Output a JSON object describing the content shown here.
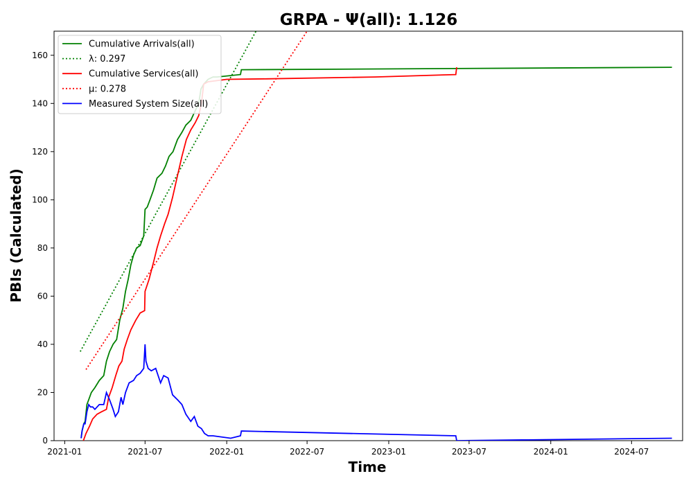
{
  "chart_data": {
    "type": "line",
    "title": "GRPA -  Ψ(all): 1.126",
    "xlabel": "Time",
    "ylabel": "PBIs (Calculated)",
    "xlim": [
      "2021-01-01",
      "2024-10-31"
    ],
    "ylim": [
      0,
      170
    ],
    "x_ticks": [
      "2021-01",
      "2021-07",
      "2022-01",
      "2022-07",
      "2023-01",
      "2023-07",
      "2024-01",
      "2024-07"
    ],
    "y_ticks": [
      0,
      20,
      40,
      60,
      80,
      100,
      120,
      140,
      160
    ],
    "grid": false,
    "legend_position": "top-left",
    "series": [
      {
        "name": "Cumulative Arrivals(all)",
        "color": "#008000",
        "style": "solid",
        "points": [
          [
            "2021-02-07",
            1
          ],
          [
            "2021-02-09",
            4
          ],
          [
            "2021-02-13",
            7
          ],
          [
            "2021-02-16",
            8
          ],
          [
            "2021-02-20",
            15
          ],
          [
            "2021-02-24",
            17
          ],
          [
            "2021-03-02",
            20
          ],
          [
            "2021-03-10",
            22
          ],
          [
            "2021-03-20",
            25
          ],
          [
            "2021-03-30",
            27
          ],
          [
            "2021-04-05",
            33
          ],
          [
            "2021-04-12",
            37
          ],
          [
            "2021-04-20",
            40
          ],
          [
            "2021-04-28",
            42
          ],
          [
            "2021-05-05",
            50
          ],
          [
            "2021-05-12",
            55
          ],
          [
            "2021-05-18",
            62
          ],
          [
            "2021-05-24",
            67
          ],
          [
            "2021-05-30",
            73
          ],
          [
            "2021-06-05",
            77
          ],
          [
            "2021-06-12",
            80
          ],
          [
            "2021-06-20",
            81
          ],
          [
            "2021-06-28",
            85
          ],
          [
            "2021-07-01",
            96
          ],
          [
            "2021-07-06",
            97
          ],
          [
            "2021-07-12",
            100
          ],
          [
            "2021-07-20",
            104
          ],
          [
            "2021-07-28",
            109
          ],
          [
            "2021-08-08",
            111
          ],
          [
            "2021-08-16",
            114
          ],
          [
            "2021-08-24",
            118
          ],
          [
            "2021-09-02",
            120
          ],
          [
            "2021-09-12",
            125
          ],
          [
            "2021-09-22",
            128
          ],
          [
            "2021-10-01",
            131
          ],
          [
            "2021-10-12",
            133
          ],
          [
            "2021-10-22",
            137
          ],
          [
            "2021-10-30",
            140
          ],
          [
            "2021-11-04",
            146
          ],
          [
            "2021-11-10",
            148
          ],
          [
            "2021-11-20",
            150
          ],
          [
            "2021-12-01",
            151
          ],
          [
            "2021-12-10",
            151
          ],
          [
            "2022-02-01",
            152
          ],
          [
            "2022-02-03",
            154
          ],
          [
            "2023-06-01",
            154.5
          ],
          [
            "2024-09-30",
            155
          ]
        ]
      },
      {
        "name": "λ: 0.297",
        "color": "#008000",
        "style": "dotted",
        "points": [
          [
            "2021-02-05",
            37
          ],
          [
            "2022-03-08",
            170
          ]
        ]
      },
      {
        "name": "Cumulative Services(all)",
        "color": "#ff0000",
        "style": "solid",
        "points": [
          [
            "2021-02-12",
            0
          ],
          [
            "2021-02-18",
            3
          ],
          [
            "2021-02-26",
            6
          ],
          [
            "2021-03-05",
            9
          ],
          [
            "2021-03-15",
            11
          ],
          [
            "2021-03-25",
            12
          ],
          [
            "2021-04-05",
            13
          ],
          [
            "2021-04-10",
            18
          ],
          [
            "2021-04-18",
            22
          ],
          [
            "2021-04-26",
            27
          ],
          [
            "2021-05-03",
            31
          ],
          [
            "2021-05-10",
            33
          ],
          [
            "2021-05-15",
            38
          ],
          [
            "2021-05-22",
            42
          ],
          [
            "2021-05-30",
            46
          ],
          [
            "2021-06-10",
            50
          ],
          [
            "2021-06-20",
            53
          ],
          [
            "2021-06-30",
            54
          ],
          [
            "2021-07-01",
            62
          ],
          [
            "2021-07-10",
            67
          ],
          [
            "2021-07-20",
            74
          ],
          [
            "2021-07-28",
            80
          ],
          [
            "2021-08-05",
            85
          ],
          [
            "2021-08-14",
            90
          ],
          [
            "2021-08-22",
            94
          ],
          [
            "2021-09-01",
            101
          ],
          [
            "2021-09-12",
            110
          ],
          [
            "2021-09-22",
            118
          ],
          [
            "2021-10-02",
            125
          ],
          [
            "2021-10-12",
            129
          ],
          [
            "2021-10-22",
            132
          ],
          [
            "2021-10-30",
            135
          ],
          [
            "2021-11-05",
            140
          ],
          [
            "2021-11-10",
            148
          ],
          [
            "2021-11-20",
            149
          ],
          [
            "2022-01-01",
            150
          ],
          [
            "2022-04-01",
            150.2
          ],
          [
            "2022-12-01",
            151
          ],
          [
            "2023-06-01",
            152
          ],
          [
            "2023-06-03",
            155
          ]
        ]
      },
      {
        "name": "μ: 0.278",
        "color": "#ff0000",
        "style": "dotted",
        "points": [
          [
            "2021-02-18",
            29.5
          ],
          [
            "2022-07-01",
            170
          ]
        ]
      },
      {
        "name": "Measured System Size(all)",
        "color": "#0000ff",
        "style": "solid",
        "points": [
          [
            "2021-02-07",
            1
          ],
          [
            "2021-02-09",
            4
          ],
          [
            "2021-02-13",
            7
          ],
          [
            "2021-02-16",
            7
          ],
          [
            "2021-02-20",
            12
          ],
          [
            "2021-02-24",
            15
          ],
          [
            "2021-02-28",
            14
          ],
          [
            "2021-03-05",
            14
          ],
          [
            "2021-03-10",
            13
          ],
          [
            "2021-03-20",
            15
          ],
          [
            "2021-03-30",
            15
          ],
          [
            "2021-04-05",
            20
          ],
          [
            "2021-04-12",
            17
          ],
          [
            "2021-04-20",
            13
          ],
          [
            "2021-04-25",
            10
          ],
          [
            "2021-05-02",
            12
          ],
          [
            "2021-05-08",
            18
          ],
          [
            "2021-05-12",
            15
          ],
          [
            "2021-05-18",
            20
          ],
          [
            "2021-05-26",
            24
          ],
          [
            "2021-06-05",
            25
          ],
          [
            "2021-06-12",
            27
          ],
          [
            "2021-06-20",
            28
          ],
          [
            "2021-06-28",
            30
          ],
          [
            "2021-07-01",
            40
          ],
          [
            "2021-07-03",
            33
          ],
          [
            "2021-07-08",
            30
          ],
          [
            "2021-07-15",
            29
          ],
          [
            "2021-07-25",
            30
          ],
          [
            "2021-08-05",
            24
          ],
          [
            "2021-08-12",
            27
          ],
          [
            "2021-08-22",
            26
          ],
          [
            "2021-09-01",
            19
          ],
          [
            "2021-09-12",
            17
          ],
          [
            "2021-09-22",
            15
          ],
          [
            "2021-10-01",
            11
          ],
          [
            "2021-10-12",
            8
          ],
          [
            "2021-10-20",
            10
          ],
          [
            "2021-10-28",
            6
          ],
          [
            "2021-11-05",
            5
          ],
          [
            "2021-11-12",
            3
          ],
          [
            "2021-11-20",
            2
          ],
          [
            "2021-12-01",
            2
          ],
          [
            "2022-01-10",
            1
          ],
          [
            "2022-02-01",
            2
          ],
          [
            "2022-02-03",
            4
          ],
          [
            "2023-06-01",
            2
          ],
          [
            "2023-06-03",
            0
          ],
          [
            "2024-09-30",
            1
          ]
        ]
      }
    ]
  }
}
